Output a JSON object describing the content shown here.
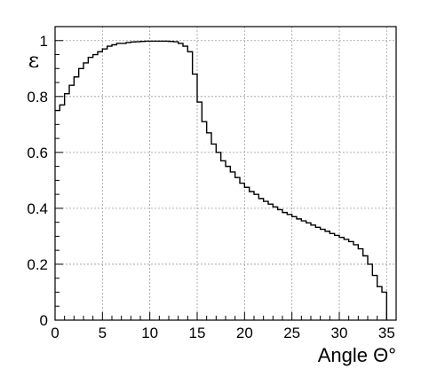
{
  "chart_data": {
    "type": "line",
    "style": "step-histogram",
    "title": "",
    "xlabel": "Angle Θ°",
    "ylabel": "ε",
    "xlim": [
      0,
      36
    ],
    "ylim": [
      0,
      1.05
    ],
    "grid": true,
    "x_ticks": [
      0,
      5,
      10,
      15,
      20,
      25,
      30,
      35
    ],
    "y_ticks": [
      0,
      0.2,
      0.4,
      0.6,
      0.8,
      1
    ],
    "x_tick_labels": [
      "0",
      "5",
      "10",
      "15",
      "20",
      "25",
      "30",
      "35"
    ],
    "y_tick_labels": [
      "0",
      "0.2",
      "0.4",
      "0.6",
      "0.8",
      "1"
    ],
    "bin_width": 0.5,
    "series": [
      {
        "x": [
          0,
          0.5,
          1,
          1.5,
          2,
          2.5,
          3,
          3.5,
          4,
          4.5,
          5,
          5.5,
          6,
          6.5,
          7,
          7.5,
          8,
          8.5,
          9,
          9.5,
          10,
          10.5,
          11,
          11.5,
          12,
          12.5,
          13,
          13.5,
          14,
          14.5,
          15,
          15.5,
          16,
          16.5,
          17,
          17.5,
          18,
          18.5,
          19,
          19.5,
          20,
          20.5,
          21,
          21.5,
          22,
          22.5,
          23,
          23.5,
          24,
          24.5,
          25,
          25.5,
          26,
          26.5,
          27,
          27.5,
          28,
          28.5,
          29,
          29.5,
          30,
          30.5,
          31,
          31.5,
          32,
          32.5,
          33,
          33.5,
          34,
          34.5
        ],
        "y": [
          0.75,
          0.77,
          0.81,
          0.84,
          0.87,
          0.9,
          0.92,
          0.94,
          0.95,
          0.96,
          0.97,
          0.98,
          0.985,
          0.99,
          0.99,
          0.993,
          0.995,
          0.996,
          0.997,
          0.998,
          0.998,
          0.998,
          0.998,
          0.998,
          0.997,
          0.996,
          0.99,
          0.98,
          0.96,
          0.88,
          0.78,
          0.71,
          0.67,
          0.63,
          0.6,
          0.57,
          0.55,
          0.53,
          0.51,
          0.49,
          0.475,
          0.46,
          0.45,
          0.435,
          0.425,
          0.415,
          0.405,
          0.395,
          0.385,
          0.378,
          0.37,
          0.362,
          0.355,
          0.348,
          0.34,
          0.332,
          0.325,
          0.318,
          0.31,
          0.303,
          0.296,
          0.289,
          0.281,
          0.27,
          0.255,
          0.23,
          0.2,
          0.16,
          0.12,
          0.1
        ]
      }
    ]
  }
}
